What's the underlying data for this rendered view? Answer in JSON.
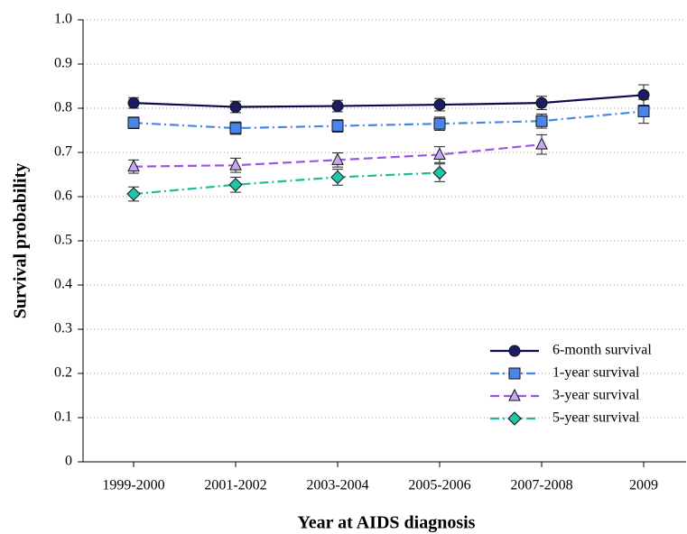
{
  "chart_data": {
    "type": "line",
    "xlabel": "Year at AIDS diagnosis",
    "ylabel": "Survival probability",
    "categories": [
      "1999-2000",
      "2001-2002",
      "2003-2004",
      "2005-2006",
      "2007-2008",
      "2009"
    ],
    "ylim": [
      0,
      1
    ],
    "yticks": [
      0,
      0.1,
      0.2,
      0.3,
      0.4,
      0.5,
      0.6,
      0.7,
      0.8,
      0.9,
      {
        "value": 1,
        "label": "1.0"
      }
    ],
    "grid": true,
    "legend": "lower right",
    "series": [
      {
        "name": "6-month survival",
        "color": "#0b0b4d",
        "marker_color": "#1c1c66",
        "marker": "circle",
        "dash": "solid",
        "values": [
          0.812,
          0.803,
          0.805,
          0.808,
          0.812,
          0.83
        ],
        "errors": [
          0.012,
          0.013,
          0.013,
          0.014,
          0.015,
          0.023
        ]
      },
      {
        "name": "1-year survival",
        "color": "#4a86e8",
        "marker_color": "#4a86e8",
        "marker": "square",
        "dash": "dashdot",
        "values": [
          0.767,
          0.755,
          0.76,
          0.765,
          0.771,
          0.793
        ],
        "errors": [
          0.013,
          0.014,
          0.014,
          0.015,
          0.016,
          0.027
        ]
      },
      {
        "name": "3-year survival",
        "color": "#9955e8",
        "marker_color": "#c8a6f0",
        "marker": "triangle",
        "dash": "dashed",
        "values": [
          0.668,
          0.671,
          0.683,
          0.695,
          0.718,
          null
        ],
        "errors": [
          0.015,
          0.016,
          0.016,
          0.018,
          0.022,
          null
        ]
      },
      {
        "name": "5-year survival",
        "color": "#1abc9c",
        "marker_color": "#22c4aa",
        "marker": "diamond",
        "dash": "dashdot",
        "values": [
          0.606,
          0.627,
          0.644,
          0.654,
          null,
          null
        ],
        "errors": [
          0.016,
          0.017,
          0.018,
          0.02,
          null,
          null
        ]
      }
    ]
  }
}
